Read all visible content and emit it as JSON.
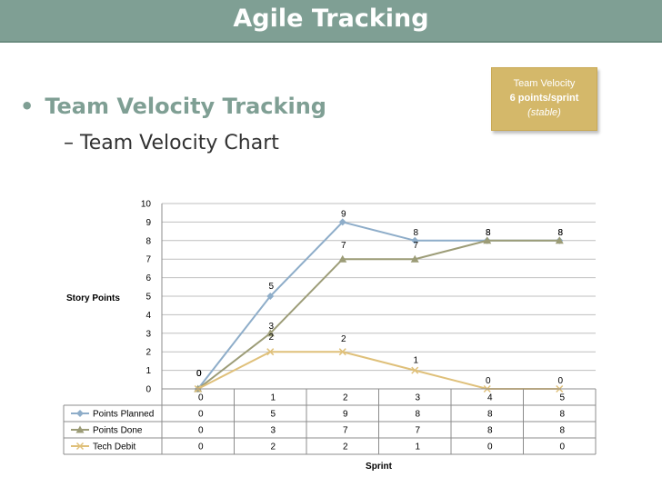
{
  "slide": {
    "title": "Agile Tracking",
    "bullet_main": "Team Velocity Tracking",
    "bullet_sub": "– Team Velocity Chart"
  },
  "note": {
    "line1": "Team Velocity",
    "line2": "6 points/sprint",
    "line3": "(stable)"
  },
  "chart_data": {
    "type": "line",
    "title": "",
    "xlabel": "Sprint",
    "ylabel": "Story Points",
    "ylim": [
      0,
      10
    ],
    "yticks": [
      0,
      1,
      2,
      3,
      4,
      5,
      6,
      7,
      8,
      9,
      10
    ],
    "categories": [
      "0",
      "1",
      "2",
      "3",
      "4",
      "5"
    ],
    "grid": true,
    "legend": "data-table",
    "series": [
      {
        "name": "Points Planned",
        "values": [
          0,
          5,
          9,
          8,
          8,
          8
        ],
        "color": "#8eadc9",
        "marker": "diamond"
      },
      {
        "name": "Points Done",
        "values": [
          0,
          3,
          7,
          7,
          8,
          8
        ],
        "color": "#9c9c77",
        "marker": "triangle"
      },
      {
        "name": "Tech Debit",
        "values": [
          0,
          2,
          2,
          1,
          0,
          0
        ],
        "color": "#dfc07a",
        "marker": "x"
      }
    ]
  }
}
